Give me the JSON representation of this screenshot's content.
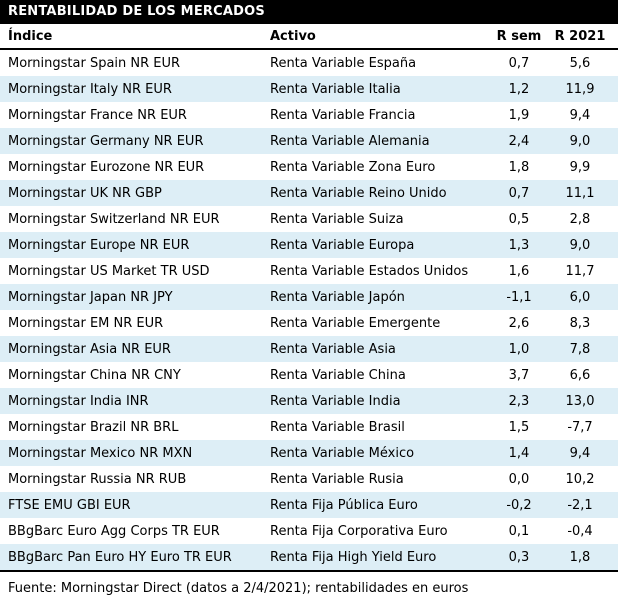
{
  "title": "RENTABILIDAD DE LOS MERCADOS",
  "footer": "Fuente: Morningstar Direct (datos a 2/4/2021); rentabilidades en euros",
  "colors": {
    "header_bar_bg": "#000000",
    "header_bar_text": "#ffffff",
    "row_alt_bg": "#ddeef6",
    "text": "#000000",
    "rule": "#000000"
  },
  "chart_data": {
    "type": "table",
    "title": "RENTABILIDAD DE LOS MERCADOS",
    "columns": [
      "Índice",
      "Activo",
      "R sem",
      "R 2021"
    ],
    "rows": [
      [
        "Morningstar Spain NR EUR",
        "Renta Variable España",
        "0,7",
        "5,6"
      ],
      [
        "Morningstar Italy NR EUR",
        "Renta Variable Italia",
        "1,2",
        "11,9"
      ],
      [
        "Morningstar France NR EUR",
        "Renta Variable Francia",
        "1,9",
        "9,4"
      ],
      [
        "Morningstar Germany NR EUR",
        "Renta Variable Alemania",
        "2,4",
        "9,0"
      ],
      [
        "Morningstar Eurozone NR EUR",
        "Renta Variable Zona Euro",
        "1,8",
        "9,9"
      ],
      [
        "Morningstar UK NR GBP",
        "Renta Variable Reino Unido",
        "0,7",
        "11,1"
      ],
      [
        "Morningstar Switzerland NR EUR",
        "Renta Variable Suiza",
        "0,5",
        "2,8"
      ],
      [
        "Morningstar Europe NR EUR",
        "Renta Variable Europa",
        "1,3",
        "9,0"
      ],
      [
        "Morningstar US Market TR USD",
        "Renta Variable Estados Unidos",
        "1,6",
        "11,7"
      ],
      [
        "Morningstar Japan NR JPY",
        "Renta Variable Japón",
        "-1,1",
        "6,0"
      ],
      [
        "Morningstar EM NR EUR",
        "Renta Variable Emergente",
        "2,6",
        "8,3"
      ],
      [
        "Morningstar Asia NR EUR",
        "Renta Variable Asia",
        "1,0",
        "7,8"
      ],
      [
        "Morningstar China NR CNY",
        "Renta Variable China",
        "3,7",
        "6,6"
      ],
      [
        "Morningstar India INR",
        "Renta Variable India",
        "2,3",
        "13,0"
      ],
      [
        "Morningstar Brazil NR BRL",
        "Renta Variable Brasil",
        "1,5",
        "-7,7"
      ],
      [
        "Morningstar Mexico NR MXN",
        "Renta Variable México",
        "1,4",
        "9,4"
      ],
      [
        "Morningstar Russia NR RUB",
        "Renta Variable Rusia",
        "0,0",
        "10,2"
      ],
      [
        "FTSE EMU GBI EUR",
        "Renta Fija Pública Euro",
        "-0,2",
        "-2,1"
      ],
      [
        "BBgBarc Euro Agg Corps TR EUR",
        "Renta Fija Corporativa Euro",
        "0,1",
        "-0,4"
      ],
      [
        "BBgBarc Pan Euro HY Euro TR EUR",
        "Renta Fija High Yield Euro",
        "0,3",
        "1,8"
      ]
    ],
    "footer": "Fuente: Morningstar Direct (datos a 2/4/2021); rentabilidades en euros",
    "layout": {
      "column_alignments": [
        "left",
        "left",
        "center",
        "center"
      ],
      "zebra_striping": true,
      "first_row_background": "white"
    }
  }
}
